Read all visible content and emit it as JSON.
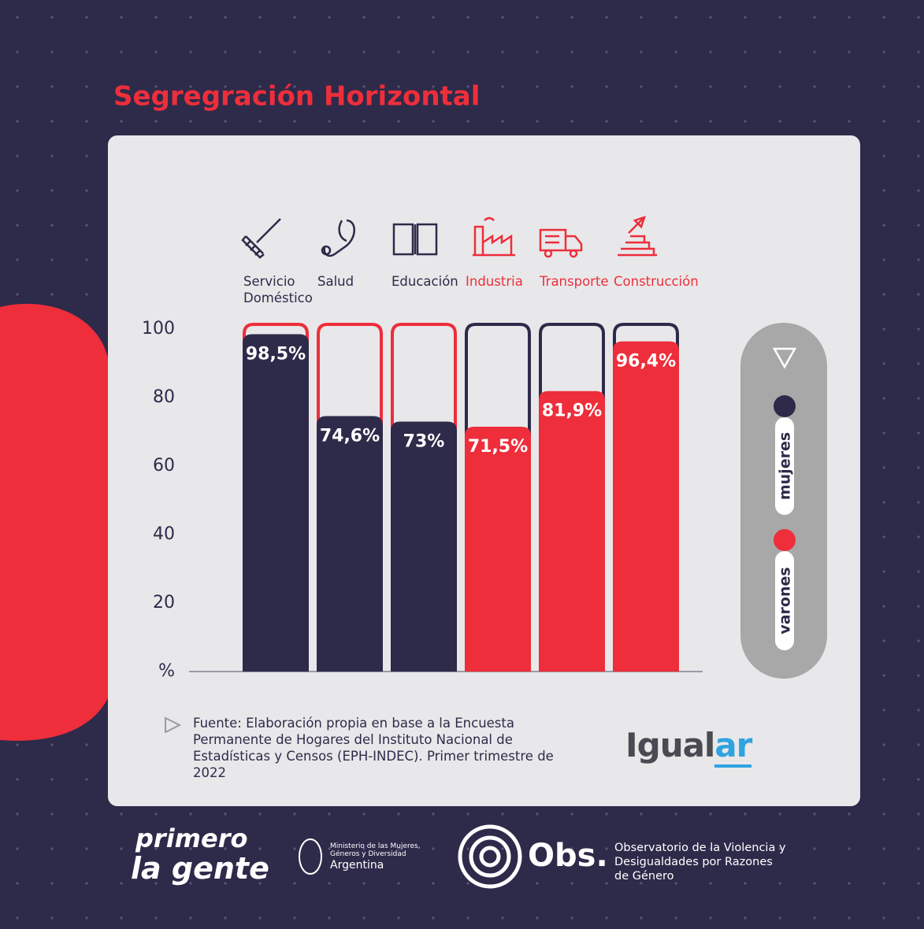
{
  "chart_data": {
    "type": "bar",
    "title": "Segregración Horizontal",
    "categories": [
      "Servicio Doméstico",
      "Salud",
      "Educación",
      "Industria",
      "Transporte",
      "Construcción"
    ],
    "values": [
      98.5,
      74.6,
      73,
      71.5,
      81.9,
      96.4
    ],
    "value_labels": [
      "98,5%",
      "74,6%",
      "73%",
      "71,5%",
      "81,9%",
      "96,4%"
    ],
    "colors": [
      "#2e2a4a",
      "#2e2a4a",
      "#2e2a4a",
      "#ee2e3b",
      "#ee2e3b",
      "#ee2e3b"
    ],
    "ylim": [
      0,
      100
    ],
    "yticks": [
      {
        "value": 0,
        "label": "%"
      },
      20,
      40,
      60,
      80,
      100
    ],
    "legend": [
      {
        "name": "mujeres",
        "color": "#2e2a4a"
      },
      {
        "name": "varones",
        "color": "#ee2e3b"
      }
    ],
    "source": "Fuente: Elaboración propia en base a la Encuesta Permanente de Hogares del Instituto Nacional de Estadísticas y Censos (EPH-INDEC). Primer trimestre de 2022"
  },
  "brand": {
    "part1": "Igual",
    "part2": "ar"
  },
  "footer": {
    "primero": "primero",
    "gente": "la gente",
    "ministerio": "Ministerio de las Mujeres, Géneros y Diversidad",
    "argentina": "Argentina",
    "obs": "Obs.",
    "observatorio": "Observatorio de la Violencia y Desigualdades por Razones de Género"
  }
}
